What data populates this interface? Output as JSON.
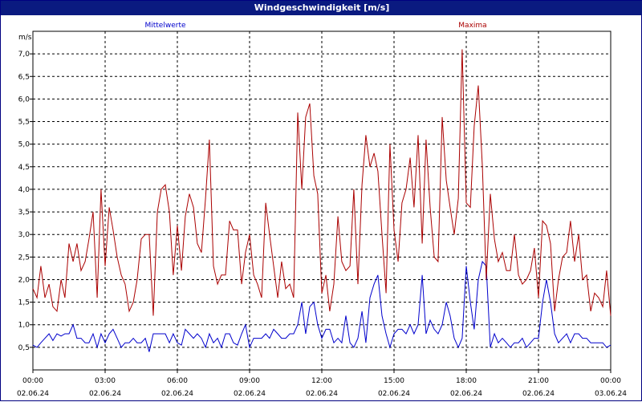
{
  "window": {
    "title": "Windgeschwindigkeit [m/s]"
  },
  "chart_data": {
    "type": "line",
    "title": "Windgeschwindigkeit [m/s]",
    "ylabel": "m/s",
    "ylim": [
      0,
      7.5
    ],
    "xlim": [
      0,
      24
    ],
    "grid": true,
    "y_ticks": [
      "0,5",
      "1,0",
      "1,5",
      "2,0",
      "2,5",
      "3,0",
      "3,5",
      "4,0",
      "4,5",
      "5,0",
      "5,5",
      "6,0",
      "6,5",
      "7,0"
    ],
    "x_ticks": [
      {
        "time": "00:00",
        "date": "02.06.24"
      },
      {
        "time": "03:00",
        "date": "02.06.24"
      },
      {
        "time": "06:00",
        "date": "02.06.24"
      },
      {
        "time": "09:00",
        "date": "02.06.24"
      },
      {
        "time": "12:00",
        "date": "02.06.24"
      },
      {
        "time": "15:00",
        "date": "02.06.24"
      },
      {
        "time": "18:00",
        "date": "02.06.24"
      },
      {
        "time": "21:00",
        "date": "02.06.24"
      },
      {
        "time": "00:00",
        "date": "03.06.24"
      }
    ],
    "series": [
      {
        "name": "Mittelwerte",
        "color": "#0000cc",
        "x": [
          0,
          0.17,
          0.33,
          0.5,
          0.67,
          0.83,
          1.0,
          1.17,
          1.33,
          1.5,
          1.67,
          1.83,
          2.0,
          2.17,
          2.33,
          2.5,
          2.67,
          2.83,
          3.0,
          3.17,
          3.33,
          3.5,
          3.67,
          3.83,
          4.0,
          4.17,
          4.33,
          4.5,
          4.67,
          4.83,
          5.0,
          5.17,
          5.33,
          5.5,
          5.67,
          5.83,
          6.0,
          6.17,
          6.33,
          6.5,
          6.67,
          6.83,
          7.0,
          7.17,
          7.33,
          7.5,
          7.67,
          7.83,
          8.0,
          8.17,
          8.33,
          8.5,
          8.67,
          8.83,
          9.0,
          9.17,
          9.33,
          9.5,
          9.67,
          9.83,
          10.0,
          10.17,
          10.33,
          10.5,
          10.67,
          10.83,
          11.0,
          11.17,
          11.33,
          11.5,
          11.67,
          11.83,
          12.0,
          12.17,
          12.33,
          12.5,
          12.67,
          12.83,
          13.0,
          13.17,
          13.33,
          13.5,
          13.67,
          13.83,
          14.0,
          14.17,
          14.33,
          14.5,
          14.67,
          14.83,
          15.0,
          15.17,
          15.33,
          15.5,
          15.67,
          15.83,
          16.0,
          16.17,
          16.33,
          16.5,
          16.67,
          16.83,
          17.0,
          17.17,
          17.33,
          17.5,
          17.67,
          17.83,
          18.0,
          18.17,
          18.33,
          18.5,
          18.67,
          18.83,
          19.0,
          19.17,
          19.33,
          19.5,
          19.67,
          19.83,
          20.0,
          20.17,
          20.33,
          20.5,
          20.67,
          20.83,
          21.0,
          21.17,
          21.33,
          21.5,
          21.67,
          21.83,
          22.0,
          22.17,
          22.33,
          22.5,
          22.67,
          22.83,
          23.0,
          23.17,
          23.33,
          23.5,
          23.67,
          23.83,
          24.0
        ],
        "values": [
          0.55,
          0.5,
          0.6,
          0.7,
          0.8,
          0.65,
          0.8,
          0.75,
          0.8,
          0.8,
          1.0,
          0.7,
          0.7,
          0.6,
          0.6,
          0.8,
          0.5,
          0.8,
          0.6,
          0.8,
          0.9,
          0.7,
          0.5,
          0.6,
          0.6,
          0.7,
          0.6,
          0.6,
          0.7,
          0.4,
          0.8,
          0.8,
          0.8,
          0.8,
          0.6,
          0.8,
          0.6,
          0.55,
          0.9,
          0.8,
          0.7,
          0.8,
          0.7,
          0.5,
          0.8,
          0.6,
          0.7,
          0.5,
          0.8,
          0.8,
          0.6,
          0.55,
          0.8,
          1.0,
          0.5,
          0.7,
          0.7,
          0.7,
          0.8,
          0.7,
          0.9,
          0.8,
          0.7,
          0.7,
          0.8,
          0.8,
          1.0,
          1.5,
          0.8,
          1.4,
          1.5,
          1.0,
          0.7,
          0.9,
          0.9,
          0.6,
          0.7,
          0.6,
          1.2,
          0.6,
          0.5,
          0.7,
          1.3,
          0.6,
          1.6,
          1.9,
          2.1,
          1.2,
          0.8,
          0.5,
          0.8,
          0.9,
          0.9,
          0.8,
          1.0,
          0.8,
          1.0,
          2.1,
          0.8,
          1.1,
          0.9,
          0.8,
          1.0,
          1.5,
          1.2,
          0.7,
          0.5,
          0.7,
          2.3,
          1.5,
          0.9,
          2.0,
          2.4,
          2.3,
          0.5,
          0.8,
          0.6,
          0.7,
          0.6,
          0.5,
          0.6,
          0.6,
          0.7,
          0.5,
          0.6,
          0.7,
          0.7,
          1.5,
          2.0,
          1.5,
          0.8,
          0.6,
          0.7,
          0.8,
          0.6,
          0.8,
          0.8,
          0.7,
          0.7,
          0.6,
          0.6,
          0.6,
          0.6,
          0.5,
          0.55
        ],
        "label_position": "top-left"
      },
      {
        "name": "Maxima",
        "color": "#aa0000",
        "x": [
          0,
          0.17,
          0.33,
          0.5,
          0.67,
          0.83,
          1.0,
          1.17,
          1.33,
          1.5,
          1.67,
          1.83,
          2.0,
          2.17,
          2.33,
          2.5,
          2.67,
          2.83,
          3.0,
          3.17,
          3.33,
          3.5,
          3.67,
          3.83,
          4.0,
          4.17,
          4.33,
          4.5,
          4.67,
          4.83,
          5.0,
          5.17,
          5.33,
          5.5,
          5.67,
          5.83,
          6.0,
          6.17,
          6.33,
          6.5,
          6.67,
          6.83,
          7.0,
          7.17,
          7.33,
          7.5,
          7.67,
          7.83,
          8.0,
          8.17,
          8.33,
          8.5,
          8.67,
          8.83,
          9.0,
          9.17,
          9.33,
          9.5,
          9.67,
          9.83,
          10.0,
          10.17,
          10.33,
          10.5,
          10.67,
          10.83,
          11.0,
          11.17,
          11.33,
          11.5,
          11.67,
          11.83,
          12.0,
          12.17,
          12.33,
          12.5,
          12.67,
          12.83,
          13.0,
          13.17,
          13.33,
          13.5,
          13.67,
          13.83,
          14.0,
          14.17,
          14.33,
          14.5,
          14.67,
          14.83,
          15.0,
          15.17,
          15.33,
          15.5,
          15.67,
          15.83,
          16.0,
          16.17,
          16.33,
          16.5,
          16.67,
          16.83,
          17.0,
          17.17,
          17.33,
          17.5,
          17.67,
          17.83,
          18.0,
          18.17,
          18.33,
          18.5,
          18.67,
          18.83,
          19.0,
          19.17,
          19.33,
          19.5,
          19.67,
          19.83,
          20.0,
          20.17,
          20.33,
          20.5,
          20.67,
          20.83,
          21.0,
          21.17,
          21.33,
          21.5,
          21.67,
          21.83,
          22.0,
          22.17,
          22.33,
          22.5,
          22.67,
          22.83,
          23.0,
          23.17,
          23.33,
          23.5,
          23.67,
          23.83,
          24.0
        ],
        "values": [
          1.8,
          1.6,
          2.3,
          1.6,
          1.9,
          1.4,
          1.3,
          2.0,
          1.6,
          2.8,
          2.4,
          2.8,
          2.2,
          2.4,
          2.9,
          3.5,
          1.6,
          4.0,
          2.3,
          3.6,
          3.1,
          2.5,
          2.1,
          1.9,
          1.3,
          1.5,
          2.0,
          2.9,
          3.0,
          3.0,
          1.2,
          3.5,
          4.0,
          4.1,
          3.5,
          2.1,
          3.2,
          2.2,
          3.4,
          3.9,
          3.6,
          2.8,
          2.6,
          3.8,
          5.1,
          2.3,
          1.9,
          2.1,
          2.1,
          3.3,
          3.1,
          3.1,
          1.9,
          2.6,
          3.0,
          2.1,
          1.9,
          1.6,
          3.7,
          3.0,
          2.3,
          1.6,
          2.4,
          1.8,
          1.9,
          1.6,
          5.7,
          4.0,
          5.6,
          5.9,
          4.3,
          3.9,
          1.7,
          2.1,
          1.3,
          1.9,
          3.4,
          2.4,
          2.2,
          2.3,
          4.0,
          1.9,
          4.1,
          5.2,
          4.5,
          4.8,
          4.4,
          3.0,
          1.7,
          5.0,
          3.1,
          2.4,
          3.7,
          4.0,
          4.7,
          3.6,
          5.2,
          2.8,
          5.1,
          3.6,
          2.5,
          2.4,
          5.6,
          4.2,
          3.6,
          3.0,
          3.8,
          7.1,
          3.7,
          3.6,
          5.4,
          6.3,
          4.5,
          2.0,
          3.9,
          2.9,
          2.4,
          2.6,
          2.2,
          2.2,
          3.0,
          2.1,
          1.9,
          2.0,
          2.2,
          2.7,
          1.6,
          3.3,
          3.2,
          2.8,
          1.3,
          2.0,
          2.5,
          2.6,
          3.3,
          2.4,
          3.0,
          2.0,
          2.1,
          1.3,
          1.7,
          1.6,
          1.4,
          2.2,
          1.2
        ],
        "label_position": "top-right"
      }
    ],
    "colors": {
      "frame": "#000080",
      "axes": "#000000",
      "grid": "#000000",
      "title_bar": "#0a1a80",
      "title_text": "#ffffff"
    }
  }
}
